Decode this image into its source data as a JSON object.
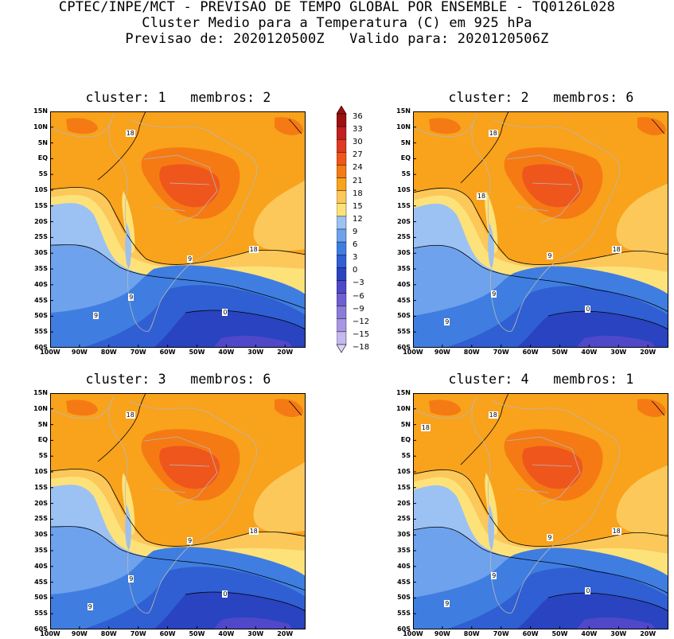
{
  "header": {
    "line1": "CPTEC/INPE/MCT - PREVISAO DE TEMPO GLOBAL POR ENSEMBLE - TQ0126L028",
    "line2": "Cluster Medio para a Temperatura (C) em 925 hPa",
    "line3": "Previsao de: 2020120500Z   Valido para: 2020120506Z"
  },
  "colors": {
    "-18": "#ddd5f5",
    "-15": "#c4b8ee",
    "-12": "#a896e4",
    "-9": "#8c7cda",
    "-6": "#6f5fd0",
    "-3": "#4f48c8",
    "0": "#2a43c0",
    "3": "#2f5fd2",
    "6": "#3f7ee0",
    "9": "#6ea2ec",
    "12": "#9cc2f3",
    "15": "#fde27a",
    "18": "#fcc85a",
    "21": "#f9a21b",
    "24": "#f57a14",
    "27": "#ef561c",
    "30": "#de3a22",
    "33": "#c21f1f",
    "36": "#9b1111"
  },
  "chart_data": [
    {
      "type": "heatmap",
      "title": "cluster: 1   membros: 2",
      "variable": "Temperatura (C) em 925 hPa",
      "lat_ticks": [
        "15N",
        "10N",
        "5N",
        "EQ",
        "5S",
        "10S",
        "15S",
        "20S",
        "25S",
        "30S",
        "35S",
        "40S",
        "45S",
        "50S",
        "55S",
        "60S"
      ],
      "lon_ticks": [
        "100W",
        "90W",
        "80W",
        "70W",
        "60W",
        "50W",
        "40W",
        "30W",
        "20W"
      ],
      "xlim": [
        -100,
        -13
      ],
      "ylim": [
        -60,
        15
      ],
      "colorbar_levels": [
        -18,
        -15,
        -12,
        -9,
        -6,
        -3,
        0,
        3,
        6,
        9,
        12,
        15,
        18,
        21,
        24,
        27,
        30,
        33,
        36
      ],
      "contour_labels": [
        {
          "value": "18",
          "lon": -73,
          "lat": 8
        },
        {
          "value": "18",
          "lon": -31,
          "lat": -29
        },
        {
          "value": "9",
          "lon": -52,
          "lat": -32
        },
        {
          "value": "9",
          "lon": -72,
          "lat": -44
        },
        {
          "value": "9",
          "lon": -84,
          "lat": -50
        },
        {
          "value": "0",
          "lon": -40,
          "lat": -49
        }
      ]
    },
    {
      "type": "heatmap",
      "title": "cluster: 2   membros: 6",
      "variable": "Temperatura (C) em 925 hPa",
      "lat_ticks": [
        "15N",
        "10N",
        "5N",
        "EQ",
        "5S",
        "10S",
        "15S",
        "20S",
        "25S",
        "30S",
        "35S",
        "40S",
        "45S",
        "50S",
        "55S",
        "60S"
      ],
      "lon_ticks": [
        "100W",
        "90W",
        "80W",
        "70W",
        "60W",
        "50W",
        "40W",
        "30W",
        "20W"
      ],
      "xlim": [
        -100,
        -13
      ],
      "ylim": [
        -60,
        15
      ],
      "colorbar_levels": [
        -18,
        -15,
        -12,
        -9,
        -6,
        -3,
        0,
        3,
        6,
        9,
        12,
        15,
        18,
        21,
        24,
        27,
        30,
        33,
        36
      ],
      "contour_labels": [
        {
          "value": "18",
          "lon": -73,
          "lat": 8
        },
        {
          "value": "18",
          "lon": -77,
          "lat": -12
        },
        {
          "value": "18",
          "lon": -31,
          "lat": -29
        },
        {
          "value": "9",
          "lon": -53,
          "lat": -31
        },
        {
          "value": "9",
          "lon": -72,
          "lat": -43
        },
        {
          "value": "9",
          "lon": -88,
          "lat": -52
        },
        {
          "value": "0",
          "lon": -40,
          "lat": -48
        }
      ]
    },
    {
      "type": "heatmap",
      "title": "cluster: 3   membros: 6",
      "variable": "Temperatura (C) em 925 hPa",
      "lat_ticks": [
        "15N",
        "10N",
        "5N",
        "EQ",
        "5S",
        "10S",
        "15S",
        "20S",
        "25S",
        "30S",
        "35S",
        "40S",
        "45S",
        "50S",
        "55S",
        "60S"
      ],
      "lon_ticks": [
        "100W",
        "90W",
        "80W",
        "70W",
        "60W",
        "50W",
        "40W",
        "30W",
        "20W"
      ],
      "xlim": [
        -100,
        -13
      ],
      "ylim": [
        -60,
        15
      ],
      "colorbar_levels": [
        -18,
        -15,
        -12,
        -9,
        -6,
        -3,
        0,
        3,
        6,
        9,
        12,
        15,
        18,
        21,
        24,
        27,
        30,
        33,
        36
      ],
      "contour_labels": [
        {
          "value": "18",
          "lon": -73,
          "lat": 8
        },
        {
          "value": "18",
          "lon": -31,
          "lat": -29
        },
        {
          "value": "9",
          "lon": -52,
          "lat": -32
        },
        {
          "value": "9",
          "lon": -72,
          "lat": -44
        },
        {
          "value": "9",
          "lon": -86,
          "lat": -53
        },
        {
          "value": "0",
          "lon": -40,
          "lat": -49
        }
      ]
    },
    {
      "type": "heatmap",
      "title": "cluster: 4   membros: 1",
      "variable": "Temperatura (C) em 925 hPa",
      "lat_ticks": [
        "15N",
        "10N",
        "5N",
        "EQ",
        "5S",
        "10S",
        "15S",
        "20S",
        "25S",
        "30S",
        "35S",
        "40S",
        "45S",
        "50S",
        "55S",
        "60S"
      ],
      "lon_ticks": [
        "100W",
        "90W",
        "80W",
        "70W",
        "60W",
        "50W",
        "40W",
        "30W",
        "20W"
      ],
      "xlim": [
        -100,
        -13
      ],
      "ylim": [
        -60,
        15
      ],
      "colorbar_levels": [
        -18,
        -15,
        -12,
        -9,
        -6,
        -3,
        0,
        3,
        6,
        9,
        12,
        15,
        18,
        21,
        24,
        27,
        30,
        33,
        36
      ],
      "contour_labels": [
        {
          "value": "18",
          "lon": -73,
          "lat": 8
        },
        {
          "value": "18",
          "lon": -96,
          "lat": 4
        },
        {
          "value": "18",
          "lon": -31,
          "lat": -29
        },
        {
          "value": "9",
          "lon": -53,
          "lat": -31
        },
        {
          "value": "9",
          "lon": -72,
          "lat": -43
        },
        {
          "value": "9",
          "lon": -88,
          "lat": -52
        },
        {
          "value": "0",
          "lon": -40,
          "lat": -48
        }
      ]
    }
  ]
}
